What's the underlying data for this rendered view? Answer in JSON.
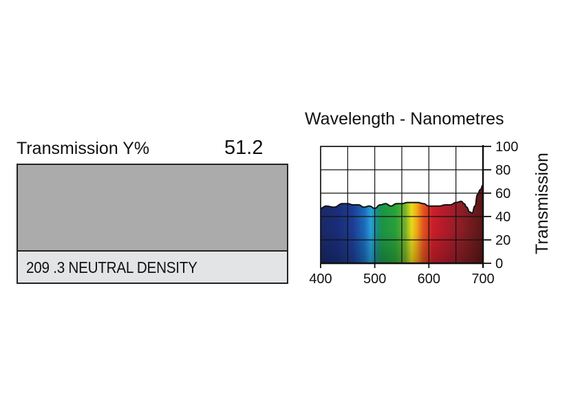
{
  "filter": {
    "transmission_label": "Transmission Y%",
    "transmission_value": "51.2",
    "name": "209 .3 NEUTRAL DENSITY",
    "swatch_color": "#acabac",
    "name_box_color": "#e3e4e6"
  },
  "chart_data": {
    "type": "area",
    "title": "Wavelength - Nanometres",
    "xlabel": "",
    "ylabel": "Transmission",
    "xlim": [
      400,
      700
    ],
    "ylim": [
      0,
      100
    ],
    "x_ticks": [
      "400",
      "500",
      "600",
      "700"
    ],
    "y_ticks": [
      "0",
      "20",
      "40",
      "60",
      "80",
      "100"
    ],
    "grid": true,
    "series": [
      {
        "x": [
          400,
          410,
          425,
          440,
          450,
          460,
          470,
          480,
          490,
          500,
          510,
          520,
          530,
          540,
          550,
          560,
          570,
          580,
          590,
          600,
          610,
          620,
          630,
          640,
          650,
          660,
          665,
          670,
          675,
          680,
          685,
          690,
          695,
          700
        ],
        "values": [
          47,
          49,
          48,
          51,
          51,
          50,
          50,
          48,
          49,
          47,
          50,
          51,
          49,
          51,
          51,
          52,
          52,
          52,
          51,
          49,
          49,
          49,
          50,
          50,
          52,
          53,
          51,
          48,
          44,
          43,
          49,
          59,
          63,
          67
        ]
      }
    ]
  }
}
